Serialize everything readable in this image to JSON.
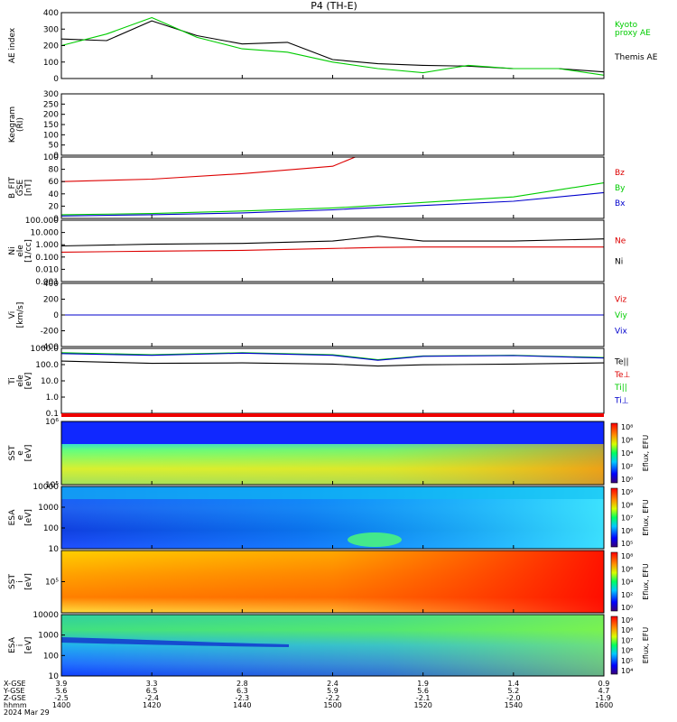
{
  "title": "P4  (TH-E)",
  "colors": {
    "ae": "#000000",
    "kyoto": "#00cc00",
    "red": "#dd0000",
    "green": "#00cc00",
    "blue": "#0000cc",
    "black": "#000000"
  },
  "panels": [
    {
      "id": "ae",
      "ylabel": [
        "AE index"
      ],
      "yticks": [
        "400",
        "300",
        "200",
        "100",
        "0"
      ],
      "legend": [
        {
          "text": "Kyoto",
          "color": "#00cc00"
        },
        {
          "text": "proxy AE",
          "color": "#00cc00"
        },
        {
          "text": "Themis AE",
          "color": "#000000"
        }
      ]
    },
    {
      "id": "keogram",
      "ylabel": [
        "Keogram",
        "(RI)"
      ],
      "yticks": [
        "300",
        "250",
        "200",
        "150",
        "100",
        "50",
        "0"
      ],
      "legend": []
    },
    {
      "id": "bfield",
      "ylabel": [
        "B_FIT",
        "GSE",
        "[nT]"
      ],
      "yticks": [
        "100",
        "80",
        "60",
        "40",
        "20",
        "0"
      ],
      "legend": [
        {
          "text": "Bz",
          "color": "#dd0000"
        },
        {
          "text": "By",
          "color": "#00cc00"
        },
        {
          "text": "Bx",
          "color": "#0000cc"
        }
      ]
    },
    {
      "id": "density",
      "ylabel": [
        "Ni",
        "ele",
        "[1/cc]"
      ],
      "yticks": [
        "100.000",
        "10.000",
        "1.000",
        "0.100",
        "0.010",
        "0.001"
      ],
      "legend": [
        {
          "text": "Ne",
          "color": "#dd0000"
        },
        {
          "text": "Ni",
          "color": "#000000"
        }
      ]
    },
    {
      "id": "velocity",
      "ylabel": [
        "Vi",
        "[km/s]"
      ],
      "yticks": [
        "400",
        "200",
        "0",
        "-200",
        "-400"
      ],
      "legend": [
        {
          "text": "Viz",
          "color": "#dd0000"
        },
        {
          "text": "Viy",
          "color": "#00cc00"
        },
        {
          "text": "Vix",
          "color": "#0000cc"
        }
      ]
    },
    {
      "id": "temperature",
      "ylabel": [
        "Ti",
        "ele",
        "[eV]"
      ],
      "yticks": [
        "1000.0",
        "100.0",
        "10.0",
        "1.0",
        "0.1"
      ],
      "legend": [
        {
          "text": "Te||",
          "color": "#000000"
        },
        {
          "text": "Te⊥",
          "color": "#dd0000"
        },
        {
          "text": "Ti||",
          "color": "#00cc00"
        },
        {
          "text": "Ti⊥",
          "color": "#0000cc"
        }
      ]
    },
    {
      "id": "sst_e",
      "ylabel": [
        "SST",
        "e",
        "[eV]"
      ],
      "yticks": [
        "10^6",
        "10^5"
      ],
      "cbar": [
        "10^8",
        "10^6",
        "10^4",
        "10^2",
        "10^0"
      ],
      "cbarlabel": "Eflux, EFU",
      "legend": []
    },
    {
      "id": "esa_e",
      "ylabel": [
        "ESA",
        "e",
        "[eV]"
      ],
      "yticks": [
        "10000",
        "1000",
        "100",
        "10"
      ],
      "cbar": [
        "10^9",
        "10^8",
        "10^7",
        "10^6",
        "10^5"
      ],
      "cbarlabel": "Eflux, EFU",
      "legend": []
    },
    {
      "id": "sst_i",
      "ylabel": [
        "SST",
        "i",
        "[eV]"
      ],
      "yticks": [
        "10^5"
      ],
      "cbar": [
        "10^8",
        "10^6",
        "10^4",
        "10^2",
        "10^0"
      ],
      "cbarlabel": "Eflux, EFU",
      "legend": []
    },
    {
      "id": "esa_i",
      "ylabel": [
        "ESA",
        "i",
        "[eV]"
      ],
      "yticks": [
        "10000",
        "1000",
        "100",
        "10"
      ],
      "cbar": [
        "10^9",
        "10^8",
        "10^7",
        "10^6",
        "10^5",
        "10^4"
      ],
      "cbarlabel": "Eflux, EFU",
      "legend": []
    }
  ],
  "xaxis": {
    "rowlabels": [
      "X-GSE",
      "Y-GSE",
      "Z-GSE",
      "hhmm",
      "2024 Mar 29"
    ],
    "ticks": [
      {
        "x": "3.9",
        "y": "5.6",
        "z": "-2.5",
        "t": "1400"
      },
      {
        "x": "3.3",
        "y": "6.5",
        "z": "-2.4",
        "t": "1420"
      },
      {
        "x": "2.8",
        "y": "6.3",
        "z": "-2.3",
        "t": "1440"
      },
      {
        "x": "2.4",
        "y": "5.9",
        "z": "-2.2",
        "t": "1500"
      },
      {
        "x": "1.9",
        "y": "5.6",
        "z": "-2.1",
        "t": "1520"
      },
      {
        "x": "1.4",
        "y": "5.2",
        "z": "-2.0",
        "t": "1540"
      },
      {
        "x": "0.9",
        "y": "4.7",
        "z": "-1.9",
        "t": "1600"
      }
    ]
  },
  "chart_data": [
    {
      "type": "line",
      "title": "AE index",
      "x": [
        1400,
        1410,
        1420,
        1430,
        1440,
        1450,
        1500,
        1510,
        1520,
        1530,
        1540,
        1550,
        1600
      ],
      "ylim": [
        0,
        400
      ],
      "series": [
        {
          "name": "Themis AE",
          "values": [
            240,
            230,
            350,
            260,
            210,
            220,
            115,
            90,
            80,
            75,
            60,
            60,
            40
          ]
        },
        {
          "name": "Kyoto proxy AE",
          "values": [
            200,
            270,
            370,
            250,
            180,
            160,
            100,
            60,
            35,
            80,
            60,
            60,
            20
          ]
        }
      ]
    },
    {
      "type": "line",
      "title": "B_FIT GSE",
      "x": [
        1400,
        1420,
        1440,
        1500,
        1505,
        1520,
        1540,
        1600
      ],
      "ylim": [
        0,
        100
      ],
      "series": [
        {
          "name": "Bz",
          "values": [
            60,
            64,
            73,
            85,
            100,
            null,
            null,
            null
          ]
        },
        {
          "name": "By",
          "values": [
            6,
            8,
            12,
            17,
            19,
            26,
            35,
            58
          ]
        },
        {
          "name": "Bx",
          "values": [
            4,
            6,
            9,
            14,
            16,
            21,
            28,
            42
          ]
        }
      ]
    },
    {
      "type": "line",
      "title": "Ni ele",
      "x": [
        1400,
        1420,
        1440,
        1500,
        1510,
        1520,
        1540,
        1600
      ],
      "ylim": [
        0.001,
        100
      ],
      "yscale": "log",
      "series": [
        {
          "name": "Ne",
          "values": [
            0.25,
            0.3,
            0.35,
            0.5,
            0.6,
            0.65,
            0.65,
            0.65
          ]
        },
        {
          "name": "Ni",
          "values": [
            0.8,
            1.1,
            1.3,
            2.0,
            5.0,
            2.0,
            2.0,
            3.0
          ]
        }
      ]
    },
    {
      "type": "line",
      "title": "Vi",
      "x": [
        1400,
        1600
      ],
      "ylim": [
        -400,
        400
      ],
      "series": [
        {
          "name": "Viz",
          "values": [
            0,
            0
          ]
        },
        {
          "name": "Viy",
          "values": [
            0,
            0
          ]
        },
        {
          "name": "Vix",
          "values": [
            0,
            0
          ]
        }
      ]
    },
    {
      "type": "line",
      "title": "Ti ele",
      "x": [
        1400,
        1420,
        1440,
        1500,
        1510,
        1520,
        1540,
        1600
      ],
      "ylim": [
        0.1,
        3000
      ],
      "yscale": "log",
      "series": [
        {
          "name": "Te||",
          "values": [
            400,
            280,
            300,
            250,
            180,
            220,
            250,
            300
          ]
        },
        {
          "name": "Ti||",
          "values": [
            1500,
            1100,
            1500,
            1100,
            500,
            900,
            1000,
            700
          ]
        },
        {
          "name": "Ti⊥",
          "values": [
            1300,
            1000,
            1400,
            1000,
            450,
            850,
            950,
            650
          ]
        }
      ]
    },
    {
      "type": "heatmap",
      "title": "SST e"
    },
    {
      "type": "heatmap",
      "title": "ESA e"
    },
    {
      "type": "heatmap",
      "title": "SST i"
    },
    {
      "type": "heatmap",
      "title": "ESA i"
    }
  ]
}
